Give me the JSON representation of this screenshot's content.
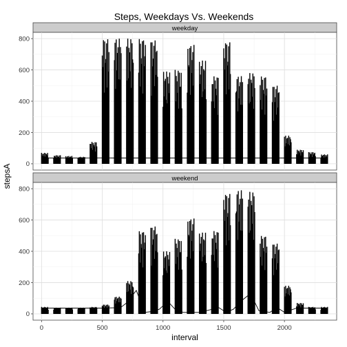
{
  "chart_data": {
    "type": "line",
    "title": "Steps, Weekdays Vs. Weekends",
    "xlabel": "interval",
    "ylabel": "stepsA",
    "xlim": [
      -70,
      2430
    ],
    "ylim": [
      -40,
      840
    ],
    "x_ticks": [
      0,
      500,
      1000,
      1500,
      2000
    ],
    "y_ticks": [
      0,
      200,
      400,
      600,
      800
    ],
    "grid": true,
    "panels": [
      {
        "label": "weekday",
        "summary": [
          {
            "x": 0,
            "y": 37
          },
          {
            "x": 300,
            "y": 37
          },
          {
            "x": 500,
            "y": 38
          },
          {
            "x": 600,
            "y": 37
          },
          {
            "x": 900,
            "y": 37
          },
          {
            "x": 1200,
            "y": 37
          },
          {
            "x": 1500,
            "y": 37
          },
          {
            "x": 1800,
            "y": 37
          },
          {
            "x": 2100,
            "y": 37
          },
          {
            "x": 2355,
            "y": 37
          }
        ],
        "hours": [
          {
            "start": 0,
            "peak": 70
          },
          {
            "start": 100,
            "peak": 55
          },
          {
            "start": 200,
            "peak": 50
          },
          {
            "start": 300,
            "peak": 45
          },
          {
            "start": 400,
            "peak": 140
          },
          {
            "start": 500,
            "peak": 800
          },
          {
            "start": 600,
            "peak": 800
          },
          {
            "start": 700,
            "peak": 800
          },
          {
            "start": 800,
            "peak": 800
          },
          {
            "start": 900,
            "peak": 790
          },
          {
            "start": 1000,
            "peak": 590
          },
          {
            "start": 1100,
            "peak": 600
          },
          {
            "start": 1200,
            "peak": 760
          },
          {
            "start": 1300,
            "peak": 660
          },
          {
            "start": 1400,
            "peak": 560
          },
          {
            "start": 1500,
            "peak": 780
          },
          {
            "start": 1600,
            "peak": 560
          },
          {
            "start": 1700,
            "peak": 580
          },
          {
            "start": 1800,
            "peak": 560
          },
          {
            "start": 1900,
            "peak": 500
          },
          {
            "start": 2000,
            "peak": 180
          },
          {
            "start": 2100,
            "peak": 90
          },
          {
            "start": 2200,
            "peak": 75
          },
          {
            "start": 2300,
            "peak": 60
          }
        ]
      },
      {
        "label": "weekend",
        "summary": [
          {
            "x": 0,
            "y": 37
          },
          {
            "x": 500,
            "y": 37
          },
          {
            "x": 650,
            "y": 40
          },
          {
            "x": 700,
            "y": 70
          },
          {
            "x": 780,
            "y": 150
          },
          {
            "x": 850,
            "y": 10
          },
          {
            "x": 910,
            "y": 15
          },
          {
            "x": 970,
            "y": 30
          },
          {
            "x": 1040,
            "y": 80
          },
          {
            "x": 1110,
            "y": 20
          },
          {
            "x": 1170,
            "y": 10
          },
          {
            "x": 1300,
            "y": 10
          },
          {
            "x": 1460,
            "y": 40
          },
          {
            "x": 1520,
            "y": 10
          },
          {
            "x": 1580,
            "y": 30
          },
          {
            "x": 1640,
            "y": 80
          },
          {
            "x": 1720,
            "y": 130
          },
          {
            "x": 1790,
            "y": 20
          },
          {
            "x": 1880,
            "y": 10
          },
          {
            "x": 1940,
            "y": 40
          },
          {
            "x": 2000,
            "y": 10
          },
          {
            "x": 2100,
            "y": 37
          },
          {
            "x": 2355,
            "y": 37
          }
        ],
        "hours": [
          {
            "start": 0,
            "peak": 45
          },
          {
            "start": 100,
            "peak": 40
          },
          {
            "start": 200,
            "peak": 40
          },
          {
            "start": 300,
            "peak": 40
          },
          {
            "start": 400,
            "peak": 45
          },
          {
            "start": 500,
            "peak": 60
          },
          {
            "start": 600,
            "peak": 110
          },
          {
            "start": 700,
            "peak": 210
          },
          {
            "start": 800,
            "peak": 530
          },
          {
            "start": 900,
            "peak": 560
          },
          {
            "start": 1000,
            "peak": 400
          },
          {
            "start": 1100,
            "peak": 480
          },
          {
            "start": 1200,
            "peak": 610
          },
          {
            "start": 1300,
            "peak": 520
          },
          {
            "start": 1400,
            "peak": 530
          },
          {
            "start": 1500,
            "peak": 770
          },
          {
            "start": 1600,
            "peak": 790
          },
          {
            "start": 1700,
            "peak": 780
          },
          {
            "start": 1800,
            "peak": 500
          },
          {
            "start": 1900,
            "peak": 450
          },
          {
            "start": 2000,
            "peak": 180
          },
          {
            "start": 2100,
            "peak": 70
          },
          {
            "start": 2200,
            "peak": 45
          },
          {
            "start": 2300,
            "peak": 45
          }
        ]
      }
    ]
  }
}
